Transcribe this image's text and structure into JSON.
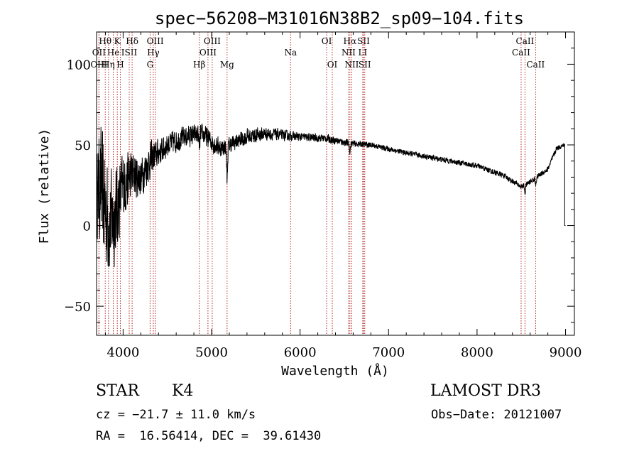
{
  "chart_data": {
    "type": "line",
    "title": "spec−56208−M31016N38B2_sp09−104.fits",
    "xlabel": "Wavelength (Å)",
    "ylabel": "Flux (relative)",
    "xlim": [
      3700,
      9100
    ],
    "ylim": [
      -68,
      120
    ],
    "xticks": [
      4000,
      5000,
      6000,
      7000,
      8000,
      9000
    ],
    "xtick_labels": [
      "4000",
      "5000",
      "6000",
      "7000",
      "8000",
      "9000"
    ],
    "yticks": [
      -50,
      0,
      50,
      100
    ],
    "ytick_labels": [
      "−50",
      "0",
      "50",
      "100"
    ],
    "line_color": "#000000",
    "marker_color": "#b22222",
    "spectrum_nodes": [
      {
        "x": 3700,
        "y": 20,
        "noise": 30
      },
      {
        "x": 3750,
        "y": 25,
        "noise": 45
      },
      {
        "x": 3800,
        "y": 10,
        "noise": 45
      },
      {
        "x": 3850,
        "y": 0,
        "noise": 40
      },
      {
        "x": 3900,
        "y": 5,
        "noise": 35
      },
      {
        "x": 3950,
        "y": 15,
        "noise": 30
      },
      {
        "x": 4000,
        "y": 25,
        "noise": 25
      },
      {
        "x": 4050,
        "y": 28,
        "noise": 22
      },
      {
        "x": 4100,
        "y": 32,
        "noise": 18
      },
      {
        "x": 4200,
        "y": 30,
        "noise": 15
      },
      {
        "x": 4300,
        "y": 40,
        "noise": 14
      },
      {
        "x": 4400,
        "y": 45,
        "noise": 10
      },
      {
        "x": 4500,
        "y": 50,
        "noise": 9
      },
      {
        "x": 4700,
        "y": 55,
        "noise": 8
      },
      {
        "x": 4900,
        "y": 57,
        "noise": 7
      },
      {
        "x": 5000,
        "y": 52,
        "noise": 8
      },
      {
        "x": 5100,
        "y": 48,
        "noise": 7
      },
      {
        "x": 5200,
        "y": 50,
        "noise": 6
      },
      {
        "x": 5400,
        "y": 55,
        "noise": 6
      },
      {
        "x": 5600,
        "y": 57,
        "noise": 5
      },
      {
        "x": 5800,
        "y": 56,
        "noise": 4
      },
      {
        "x": 6000,
        "y": 55,
        "noise": 3
      },
      {
        "x": 6300,
        "y": 54,
        "noise": 3
      },
      {
        "x": 6550,
        "y": 51,
        "noise": 2.5
      },
      {
        "x": 6800,
        "y": 50,
        "noise": 2
      },
      {
        "x": 7200,
        "y": 45,
        "noise": 2
      },
      {
        "x": 7600,
        "y": 41,
        "noise": 2
      },
      {
        "x": 8000,
        "y": 37,
        "noise": 2
      },
      {
        "x": 8300,
        "y": 31,
        "noise": 2
      },
      {
        "x": 8500,
        "y": 24,
        "noise": 2
      },
      {
        "x": 8600,
        "y": 27,
        "noise": 2
      },
      {
        "x": 8800,
        "y": 35,
        "noise": 2
      },
      {
        "x": 8900,
        "y": 48,
        "noise": 2
      },
      {
        "x": 8990,
        "y": 50,
        "noise": 1.5
      }
    ],
    "absorption_dips": [
      {
        "x": 4861,
        "depth": 8
      },
      {
        "x": 5175,
        "depth": 20
      },
      {
        "x": 6563,
        "depth": 5
      },
      {
        "x": 8542,
        "depth": 5
      },
      {
        "x": 8662,
        "depth": 4
      }
    ],
    "lines": [
      {
        "label": "Hθ",
        "x": 3798,
        "row": 1
      },
      {
        "label": "OII",
        "x": 3727,
        "row": 2
      },
      {
        "label": "OIII",
        "x": 3727,
        "row": 3
      },
      {
        "label": "K",
        "x": 3934,
        "row": 1
      },
      {
        "label": "He",
        "x": 3889,
        "row": 2
      },
      {
        "label": "Hη",
        "x": 3835,
        "row": 3
      },
      {
        "label": "ISII",
        "x": 4069,
        "row": 2
      },
      {
        "label": "H",
        "x": 3969,
        "row": 3
      },
      {
        "label": "Hδ",
        "x": 4102,
        "row": 1
      },
      {
        "label": "OIII",
        "x": 4363,
        "row": 1
      },
      {
        "label": "Hγ",
        "x": 4341,
        "row": 2
      },
      {
        "label": "G",
        "x": 4305,
        "row": 3
      },
      {
        "label": "Hβ",
        "x": 4861,
        "row": 3
      },
      {
        "label": "OIII",
        "x": 5007,
        "row": 1
      },
      {
        "label": "OIII",
        "x": 4959,
        "row": 2
      },
      {
        "label": "Mg",
        "x": 5175,
        "row": 3
      },
      {
        "label": "Na",
        "x": 5893,
        "row": 2
      },
      {
        "label": "OI",
        "x": 6300,
        "row": 1
      },
      {
        "label": "OI",
        "x": 6364,
        "row": 3
      },
      {
        "label": "Hα",
        "x": 6563,
        "row": 1
      },
      {
        "label": "NII",
        "x": 6548,
        "row": 2
      },
      {
        "label": "NII",
        "x": 6584,
        "row": 3
      },
      {
        "label": "SII",
        "x": 6717,
        "row": 1
      },
      {
        "label": "LI",
        "x": 6708,
        "row": 2
      },
      {
        "label": "SII",
        "x": 6731,
        "row": 3
      },
      {
        "label": "CaII",
        "x": 8542,
        "row": 1
      },
      {
        "label": "CaII",
        "x": 8498,
        "row": 2
      },
      {
        "label": "CaII",
        "x": 8662,
        "row": 3
      }
    ]
  },
  "footer": {
    "class_label": "STAR",
    "subclass": "K4",
    "survey": "LAMOST DR3",
    "redshift": "cz = −21.7 ± 11.0 km/s",
    "obs_date": "Obs−Date: 20121007",
    "coords": "RA =  16.56414, DEC =  39.61430"
  }
}
